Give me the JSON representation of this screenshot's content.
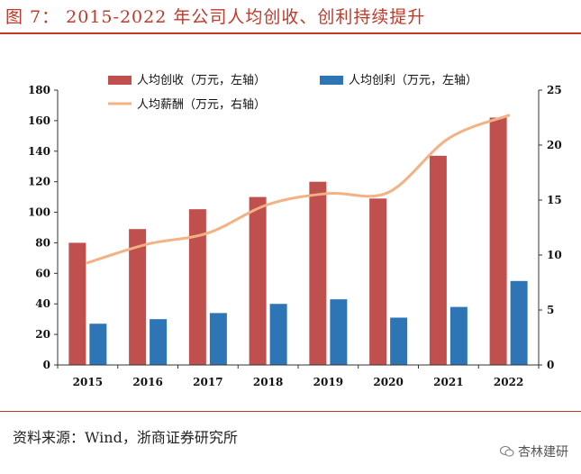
{
  "page": {
    "title": "图 7：  2015-2022 年公司人均创收、创利持续提升",
    "source": "资料来源：Wind，浙商证券研究所",
    "watermark": "杏林建研"
  },
  "colors": {
    "accent": "#c0392b",
    "bar_revenue": "#c0504d",
    "bar_profit": "#2e75b6",
    "line_salary": "#f4b183"
  },
  "chart_data": {
    "type": "bar",
    "title": "2015-2022 年公司人均创收、创利持续提升",
    "categories": [
      "2015",
      "2016",
      "2017",
      "2018",
      "2019",
      "2020",
      "2021",
      "2022"
    ],
    "y_left": {
      "min": 0,
      "max": 180,
      "ticks": [
        0,
        20,
        40,
        60,
        80,
        100,
        120,
        140,
        160,
        180
      ]
    },
    "y_right": {
      "min": 0,
      "max": 25,
      "ticks": [
        0,
        5,
        10,
        15,
        20,
        25
      ]
    },
    "legend_placement": "top",
    "series": [
      {
        "name": "人均创收（万元，左轴）",
        "type": "bar",
        "axis": "left",
        "values": [
          80,
          89,
          102,
          110,
          120,
          109,
          137,
          162
        ]
      },
      {
        "name": "人均创利（万元，左轴）",
        "type": "bar",
        "axis": "left",
        "values": [
          27,
          30,
          34,
          40,
          43,
          31,
          38,
          55
        ]
      },
      {
        "name": "人均薪酬（万元，右轴）",
        "type": "line",
        "axis": "right",
        "values": [
          9.3,
          11.0,
          12.0,
          14.6,
          15.6,
          15.7,
          20.6,
          22.7
        ]
      }
    ]
  }
}
